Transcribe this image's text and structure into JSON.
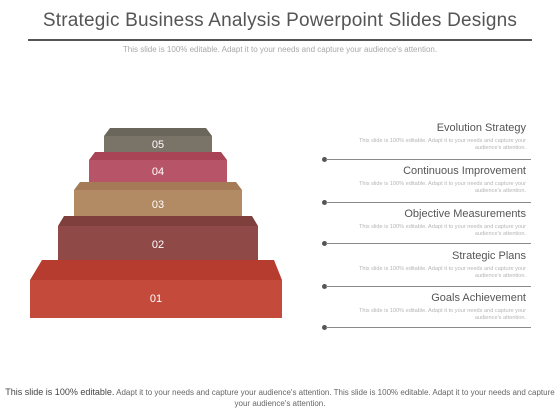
{
  "header": {
    "title": "Strategic Business Analysis Powerpoint Slides Designs",
    "subtitle": "This slide is 100% editable. Adapt it to your needs and capture your audience's attention."
  },
  "steps": [
    {
      "number": "05",
      "top_color": "#6b665c",
      "front_color": "#7a7468"
    },
    {
      "number": "04",
      "top_color": "#a94356",
      "front_color": "#b85468"
    },
    {
      "number": "03",
      "top_color": "#a57a56",
      "front_color": "#b28a63"
    },
    {
      "number": "02",
      "top_color": "#7f3f3d",
      "front_color": "#8f4a47"
    },
    {
      "number": "01",
      "top_color": "#b63c2f",
      "front_color": "#c44b3b"
    }
  ],
  "items": [
    {
      "title": "Evolution Strategy",
      "description": "This slide is 100% editable. Adapt it to your needs and capture your audience's attention."
    },
    {
      "title": "Continuous Improvement",
      "description": "This slide is 100% editable. Adapt it to your needs and capture your audience's attention."
    },
    {
      "title": "Objective Measurements",
      "description": "This slide is 100% editable. Adapt it to your needs and capture your audience's attention."
    },
    {
      "title": "Strategic Plans",
      "description": "This slide is 100% editable. Adapt it to your needs and capture your audience's attention."
    },
    {
      "title": "Goals Achievement",
      "description": "This slide is 100% editable. Adapt it to your needs and capture your audience's attention."
    }
  ],
  "footer": {
    "lead": "This slide is 100% editable.",
    "rest": "Adapt it to your needs and capture your audience's attention. This slide is 100% editable. Adapt it to your needs and capture your audience's attention."
  }
}
